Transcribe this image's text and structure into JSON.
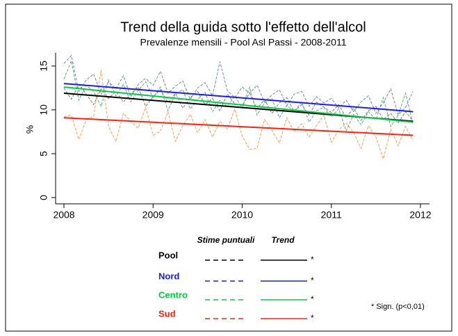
{
  "chart_data": {
    "type": "line",
    "title": "Trend della guida sotto l'effetto dell'alcol",
    "subtitle": "Prevalenze mensili - Pool Asl Passi - 2008-2011",
    "y_label": "%",
    "xlim": [
      2007.9,
      2012.1
    ],
    "xticks": [
      2008,
      2009,
      2010,
      2011,
      2012
    ],
    "ylim": [
      -0.7,
      16.5
    ],
    "yticks": [
      0,
      5,
      10,
      15
    ],
    "x": [
      2008,
      2008.083,
      2008.167,
      2008.25,
      2008.333,
      2008.417,
      2008.5,
      2008.583,
      2008.667,
      2008.75,
      2008.833,
      2008.917,
      2009,
      2009.083,
      2009.167,
      2009.25,
      2009.333,
      2009.417,
      2009.5,
      2009.583,
      2009.667,
      2009.75,
      2009.833,
      2009.917,
      2010,
      2010.083,
      2010.167,
      2010.25,
      2010.333,
      2010.417,
      2010.5,
      2010.583,
      2010.667,
      2010.75,
      2010.833,
      2010.917,
      2011,
      2011.083,
      2011.167,
      2011.25,
      2011.333,
      2011.417,
      2011.5,
      2011.583,
      2011.667,
      2011.75,
      2011.833,
      2011.917
    ],
    "trend_x": [
      2008,
      2011.917
    ],
    "legend_headers": [
      "Stime puntuali",
      "Trend"
    ],
    "note": "* Sign. (p<0,01)",
    "groups": [
      {
        "name": "Pool",
        "color": "#000000",
        "dash_color": "#6f7f7a",
        "sig": "*",
        "values": [
          12.5,
          11.2,
          12.9,
          11.8,
          10.6,
          12.4,
          11.3,
          12.1,
          10.9,
          11.8,
          12.6,
          10.4,
          11.5,
          12.3,
          10.8,
          11.9,
          10.2,
          11.4,
          12.1,
          10.6,
          11.3,
          9.9,
          11.8,
          10.7,
          10.5,
          11.9,
          10.1,
          11.2,
          9.6,
          10.8,
          11.4,
          9.8,
          10.6,
          9.4,
          10.9,
          10.3,
          9.7,
          10.6,
          9.1,
          10.2,
          8.8,
          9.9,
          10.4,
          8.9,
          9.6,
          8.5,
          9.8,
          8.7
        ],
        "trend": [
          11.9,
          8.7
        ]
      },
      {
        "name": "Nord",
        "color": "#1a1aff",
        "dash_color": "#6a8aa8",
        "sig": "*",
        "values": [
          15.3,
          16.2,
          12.1,
          13.4,
          14.1,
          11.8,
          13.2,
          12.4,
          13.9,
          11.5,
          12.9,
          13.6,
          12.8,
          14.4,
          11.9,
          12.7,
          13.3,
          11.2,
          12.5,
          13.1,
          11.6,
          15.5,
          12.2,
          11.4,
          12.6,
          11.9,
          12.8,
          10.9,
          11.7,
          12.3,
          10.5,
          11.8,
          12.1,
          10.4,
          11.5,
          10.8,
          11.3,
          10.2,
          11.1,
          9.8,
          10.9,
          11.6,
          9.6,
          10.8,
          12.4,
          9.4,
          10.3,
          12.1
        ],
        "trend": [
          13.0,
          9.8
        ]
      },
      {
        "name": "Centro",
        "color": "#00cc44",
        "dash_color": "#5fa67a",
        "sig": "*",
        "values": [
          13.5,
          15.6,
          11.1,
          12.8,
          12.1,
          10.4,
          13.4,
          11.6,
          12.9,
          10.9,
          12.2,
          13.2,
          11.4,
          12.6,
          9.9,
          11.8,
          12.3,
          10.1,
          11.2,
          12.0,
          9.8,
          11.1,
          10.4,
          11.6,
          10.2,
          12.6,
          9.4,
          10.8,
          11.3,
          9.1,
          10.5,
          9.8,
          10.9,
          8.6,
          9.9,
          10.3,
          9.2,
          10.1,
          7.6,
          9.5,
          8.3,
          9.8,
          8.9,
          11.4,
          8.1,
          9.4,
          11.9,
          8.4
        ],
        "trend": [
          12.6,
          8.6
        ]
      },
      {
        "name": "Sud",
        "color": "#ff2010",
        "dash_color": "#f5a050",
        "sig": "*",
        "values": [
          9.2,
          9.4,
          6.6,
          8.9,
          9.3,
          14.5,
          8.1,
          6.4,
          9.6,
          8.7,
          7.9,
          10.3,
          7.1,
          7.6,
          9.8,
          6.4,
          8.2,
          9.5,
          7.4,
          8.9,
          6.9,
          8.7,
          7.8,
          10.1,
          7.0,
          5.5,
          5.6,
          8.9,
          7.7,
          6.2,
          9.1,
          7.5,
          8.4,
          6.9,
          8.2,
          9.4,
          6.3,
          7.7,
          8.5,
          7.4,
          5.6,
          8.2,
          6.9,
          4.4,
          7.8,
          5.9,
          8.1,
          6.5
        ],
        "trend": [
          9.1,
          7.1
        ]
      }
    ]
  }
}
